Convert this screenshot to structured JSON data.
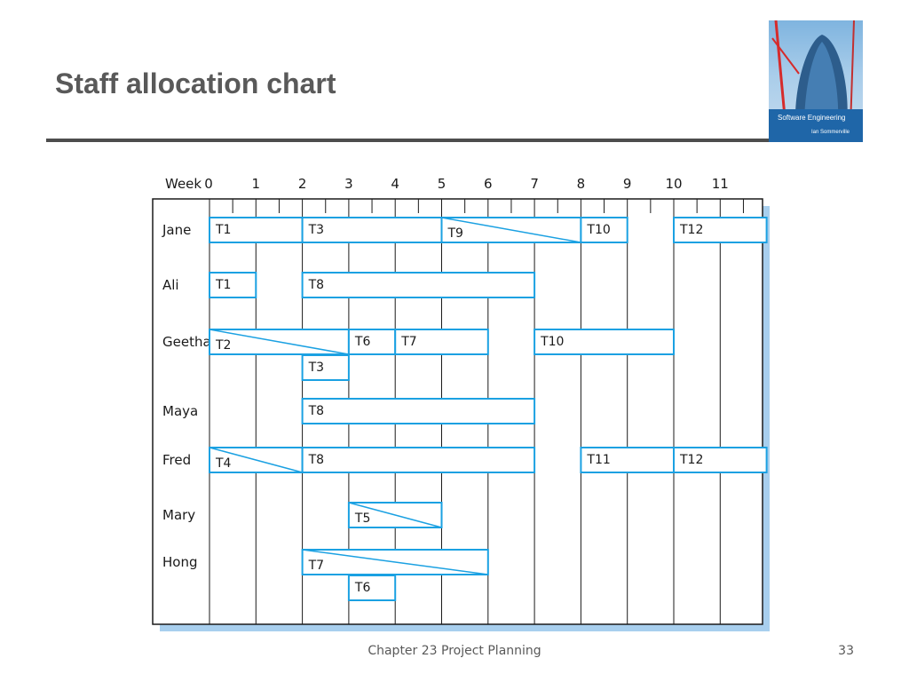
{
  "slide": {
    "title": "Staff allocation chart",
    "footer": "Chapter 23 Project Planning",
    "page_number": "33"
  },
  "book_cover": {
    "title": "Software Engineering",
    "author": "Ian Sommerville"
  },
  "colors": {
    "bar_stroke": "#1ba1e2",
    "grid": "#1a1a1a",
    "shadow": "#a8cfee"
  },
  "chart_data": {
    "type": "gantt",
    "x_label": "Week",
    "weeks": [
      "0",
      "1",
      "2",
      "3",
      "4",
      "5",
      "6",
      "7",
      "8",
      "9",
      "10",
      "11"
    ],
    "staff": [
      "Jane",
      "Ali",
      "Geetha",
      "Maya",
      "Fred",
      "Mary",
      "Hong"
    ],
    "tasks": [
      {
        "staff": "Jane",
        "task": "T1",
        "start": 0,
        "end": 2,
        "sub": 0
      },
      {
        "staff": "Jane",
        "task": "T3",
        "start": 2,
        "end": 5,
        "sub": 0
      },
      {
        "staff": "Jane",
        "task": "T9",
        "start": 5,
        "end": 8,
        "sub": 0,
        "diagonal": true
      },
      {
        "staff": "Jane",
        "task": "T10",
        "start": 8,
        "end": 9,
        "sub": 0
      },
      {
        "staff": "Jane",
        "task": "T12",
        "start": 10,
        "end": 12,
        "sub": 0
      },
      {
        "staff": "Ali",
        "task": "T1",
        "start": 0,
        "end": 1,
        "sub": 0
      },
      {
        "staff": "Ali",
        "task": "T8",
        "start": 2,
        "end": 7,
        "sub": 0
      },
      {
        "staff": "Geetha",
        "task": "T2",
        "start": 0,
        "end": 3,
        "sub": 0,
        "diagonal": true
      },
      {
        "staff": "Geetha",
        "task": "T6",
        "start": 3,
        "end": 4,
        "sub": 0
      },
      {
        "staff": "Geetha",
        "task": "T7",
        "start": 4,
        "end": 6,
        "sub": 0
      },
      {
        "staff": "Geetha",
        "task": "T10",
        "start": 7,
        "end": 10,
        "sub": 0
      },
      {
        "staff": "Geetha",
        "task": "T3",
        "start": 2,
        "end": 3,
        "sub": 1
      },
      {
        "staff": "Maya",
        "task": "T8",
        "start": 2,
        "end": 7,
        "sub": 0
      },
      {
        "staff": "Fred",
        "task": "T4",
        "start": 0,
        "end": 2,
        "sub": 0,
        "diagonal": true
      },
      {
        "staff": "Fred",
        "task": "T8",
        "start": 2,
        "end": 7,
        "sub": 0
      },
      {
        "staff": "Fred",
        "task": "T11",
        "start": 8,
        "end": 10,
        "sub": 0
      },
      {
        "staff": "Fred",
        "task": "T12",
        "start": 10,
        "end": 12,
        "sub": 0
      },
      {
        "staff": "Mary",
        "task": "T5",
        "start": 3,
        "end": 5,
        "sub": 0,
        "diagonal": true
      },
      {
        "staff": "Hong",
        "task": "T7",
        "start": 2,
        "end": 6,
        "sub": 0,
        "diagonal": true
      },
      {
        "staff": "Hong",
        "task": "T6",
        "start": 3,
        "end": 4,
        "sub": 1
      }
    ]
  }
}
